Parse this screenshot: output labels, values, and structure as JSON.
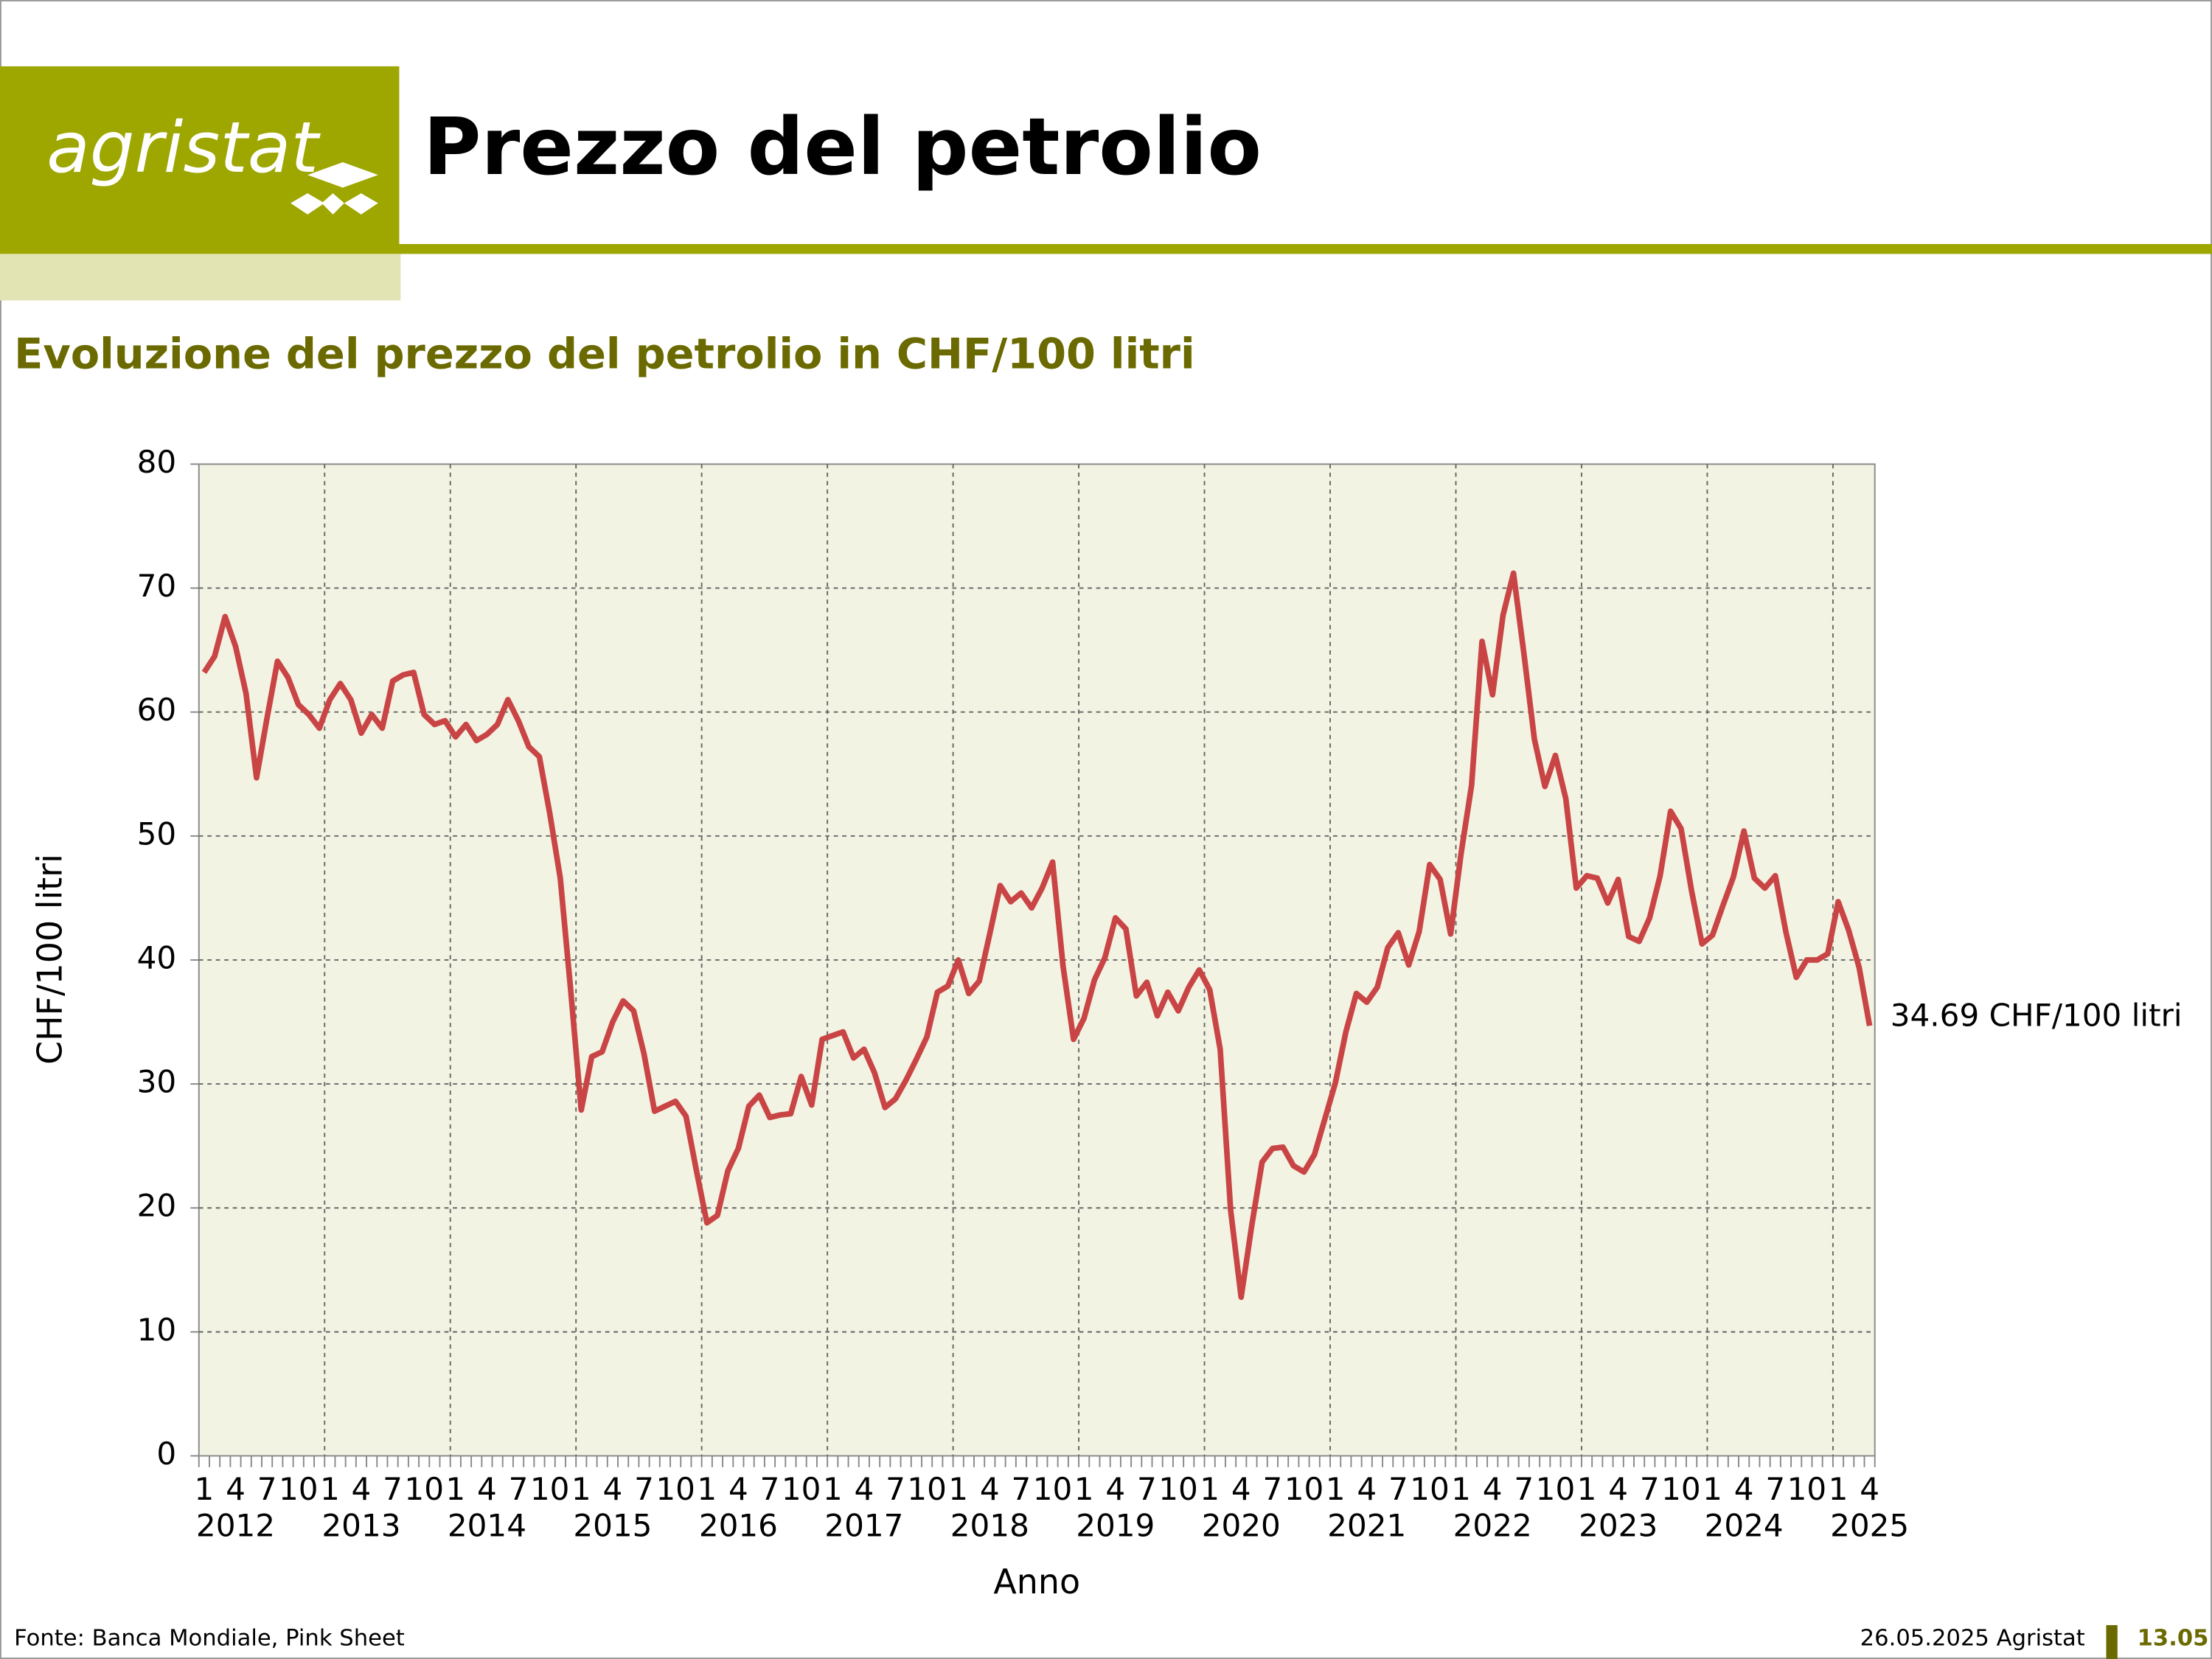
{
  "header": {
    "logo": "agristat",
    "title": "Prezzo del petrolio"
  },
  "footer": {
    "source": "Fonte: Banca Mondiale, Pink Sheet",
    "date": "26.05.2025 Agristat",
    "page": "13.05"
  },
  "chart_data": {
    "type": "line",
    "title": "Evoluzione del prezzo del petrolio in CHF/100 litri",
    "x_label": "Anno",
    "y_label": "CHF/100 litri",
    "categories": [
      "1",
      null,
      null,
      "4",
      null,
      null,
      "7",
      null,
      null,
      "10",
      null,
      null,
      "1",
      null,
      null,
      "4",
      null,
      null,
      "7",
      null,
      null,
      "10",
      null,
      null,
      "1",
      null,
      null,
      "4",
      null,
      null,
      "7",
      null,
      null,
      "10",
      null,
      null,
      "1",
      null,
      null,
      "4",
      null,
      null,
      "7",
      null,
      null,
      "10",
      null,
      null,
      "1",
      null,
      null,
      "4",
      null,
      null,
      "7",
      null,
      null,
      "10",
      null,
      null,
      "1",
      null,
      null,
      "4",
      null,
      null,
      "7",
      null,
      null,
      "10",
      null,
      null,
      "1",
      null,
      null,
      "4",
      null,
      null,
      "7",
      null,
      null,
      "10",
      null,
      null,
      "1",
      null,
      null,
      "4",
      null,
      null,
      "7",
      null,
      null,
      "10",
      null,
      null,
      "1",
      null,
      null,
      "4",
      null,
      null,
      "7",
      null,
      null,
      "10",
      null,
      null,
      "1",
      null,
      null,
      "4",
      null,
      null,
      "7",
      null,
      null,
      "10",
      null,
      null,
      "1",
      null,
      null,
      "4",
      null,
      null,
      "7",
      null,
      null,
      "10",
      null,
      null,
      "1",
      null,
      null,
      "4",
      null,
      null,
      "7",
      null,
      null,
      "10",
      null,
      null,
      "1",
      null,
      null,
      "4",
      null,
      null,
      "7",
      null,
      null,
      "10",
      null,
      null,
      "1",
      null,
      null,
      "4"
    ],
    "x_groups": [
      "2012",
      "2013",
      "2014",
      "2015",
      "2016",
      "2017",
      "2018",
      "2019",
      "2020",
      "2021",
      "2022",
      "2023",
      "2024",
      "2025"
    ],
    "values": [
      63.2,
      64.5,
      67.7,
      65.3,
      61.5,
      54.7,
      59.5,
      64.1,
      62.8,
      60.6,
      59.8,
      58.7,
      61.0,
      62.3,
      61.0,
      58.3,
      59.8,
      58.7,
      62.5,
      63.0,
      63.2,
      59.8,
      59.0,
      59.3,
      58.0,
      59.0,
      57.7,
      58.2,
      59.0,
      61.0,
      59.3,
      57.2,
      56.4,
      51.8,
      46.6,
      37.5,
      27.9,
      32.2,
      32.6,
      35.0,
      36.7,
      35.9,
      32.4,
      27.8,
      28.2,
      28.6,
      27.4,
      23.0,
      18.8,
      19.4,
      23.0,
      24.8,
      28.2,
      29.1,
      27.3,
      27.5,
      27.6,
      30.6,
      28.3,
      33.6,
      33.9,
      34.2,
      32.1,
      32.8,
      30.9,
      28.1,
      28.8,
      30.3,
      32.0,
      33.8,
      37.4,
      37.9,
      40.0,
      37.3,
      38.3,
      42.1,
      46.0,
      44.7,
      45.4,
      44.2,
      45.8,
      47.9,
      39.5,
      33.6,
      35.3,
      38.4,
      40.2,
      43.4,
      42.5,
      37.1,
      38.2,
      35.5,
      37.4,
      35.9,
      37.8,
      39.2,
      37.6,
      32.8,
      19.8,
      12.8,
      18.5,
      23.7,
      24.8,
      24.9,
      23.4,
      22.9,
      24.3,
      27.2,
      30.1,
      34.2,
      37.3,
      36.6,
      37.8,
      41.0,
      42.2,
      39.6,
      42.3,
      47.7,
      46.5,
      42.1,
      48.6,
      54.1,
      65.7,
      61.4,
      67.8,
      71.2,
      64.7,
      57.8,
      54.0,
      56.5,
      53.0,
      45.8,
      46.8,
      46.6,
      44.6,
      46.5,
      41.9,
      41.5,
      43.4,
      46.8,
      52.0,
      50.6,
      45.6,
      41.3,
      42.0,
      44.4,
      46.7,
      50.4,
      46.6,
      45.8,
      46.8,
      42.3,
      38.6,
      40.0,
      40.0,
      40.5,
      44.7,
      42.4,
      39.4,
      34.69
    ],
    "color": "#c94545",
    "annotation": "34.69 CHF/100 litri",
    "ylim": [
      0,
      80
    ],
    "yticks": [
      0,
      10,
      20,
      30,
      40,
      50,
      60,
      70,
      80
    ],
    "grid": true
  }
}
